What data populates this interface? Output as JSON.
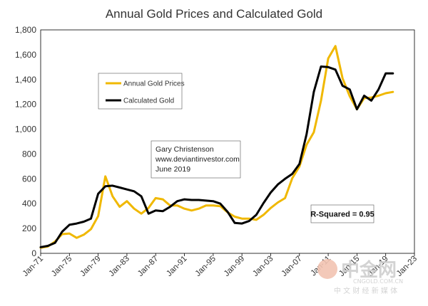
{
  "chart_data": {
    "type": "line",
    "title": "Annual Gold Prices and Calculated Gold",
    "ylim": [
      0,
      1800
    ],
    "yticks": [
      "0",
      "200",
      "400",
      "600",
      "800",
      "1,000",
      "1,200",
      "1,400",
      "1,600",
      "1,800"
    ],
    "yticks_values": [
      0,
      200,
      400,
      600,
      800,
      1000,
      1200,
      1400,
      1600,
      1800
    ],
    "xlim": [
      1971,
      2023
    ],
    "xticks": [
      "Jan-71",
      "Jan-75",
      "Jan-79",
      "Jan-83",
      "Jan-87",
      "Jan-91",
      "Jan-95",
      "Jan-99",
      "Jan-03",
      "Jan-07",
      "Jan-11",
      "Jan-15",
      "Jan-19",
      "Jan-23"
    ],
    "xticks_values": [
      1971,
      1975,
      1979,
      1983,
      1987,
      1991,
      1995,
      1999,
      2003,
      2007,
      2011,
      2015,
      2019,
      2023
    ],
    "grid": false,
    "legend_position": "upper-left inside",
    "series": [
      {
        "name": "Annual Gold Prices",
        "color": "#f0b800",
        "x": [
          1971,
          1972,
          1973,
          1974,
          1975,
          1976,
          1977,
          1978,
          1979,
          1980,
          1981,
          1982,
          1983,
          1984,
          1985,
          1986,
          1987,
          1988,
          1989,
          1990,
          1991,
          1992,
          1993,
          1994,
          1995,
          1996,
          1997,
          1998,
          1999,
          2000,
          2001,
          2002,
          2003,
          2004,
          2005,
          2006,
          2007,
          2008,
          2009,
          2010,
          2011,
          2012,
          2013,
          2014,
          2015,
          2016,
          2017,
          2018,
          2019,
          2020
        ],
        "values": [
          45,
          55,
          95,
          155,
          160,
          125,
          150,
          195,
          300,
          620,
          460,
          375,
          420,
          360,
          320,
          365,
          445,
          435,
          385,
          385,
          360,
          345,
          360,
          385,
          385,
          380,
          330,
          295,
          280,
          280,
          270,
          310,
          365,
          410,
          445,
          605,
          700,
          875,
          975,
          1230,
          1570,
          1670,
          1410,
          1265,
          1160,
          1250,
          1255,
          1270,
          1290,
          1300
        ]
      },
      {
        "name": "Calculated Gold",
        "color": "#000000",
        "x": [
          1971,
          1972,
          1973,
          1974,
          1975,
          1976,
          1977,
          1978,
          1979,
          1980,
          1981,
          1982,
          1983,
          1984,
          1985,
          1986,
          1987,
          1988,
          1989,
          1990,
          1991,
          1992,
          1993,
          1994,
          1995,
          1996,
          1997,
          1998,
          1999,
          2000,
          2001,
          2002,
          2003,
          2004,
          2005,
          2006,
          2007,
          2008,
          2009,
          2010,
          2011,
          2012,
          2013,
          2014,
          2015,
          2016,
          2017,
          2018,
          2019,
          2020
        ],
        "values": [
          50,
          60,
          85,
          175,
          230,
          240,
          255,
          280,
          480,
          540,
          545,
          530,
          515,
          500,
          460,
          320,
          345,
          340,
          375,
          420,
          435,
          430,
          430,
          425,
          420,
          400,
          335,
          245,
          240,
          260,
          310,
          405,
          490,
          555,
          600,
          640,
          720,
          960,
          1300,
          1505,
          1500,
          1480,
          1350,
          1320,
          1160,
          1270,
          1230,
          1320,
          1450,
          1450
        ]
      }
    ],
    "annotations": {
      "source_lines": [
        "Gary Christenson",
        "www.deviantinvestor.com",
        "June 2019"
      ],
      "r_squared": "R-Squared = 0.95"
    }
  },
  "watermark": {
    "brand": "中金网",
    "tagline": "中 文 财 经 新 媒 体",
    "url": "CNGOLD.COM.CN"
  }
}
